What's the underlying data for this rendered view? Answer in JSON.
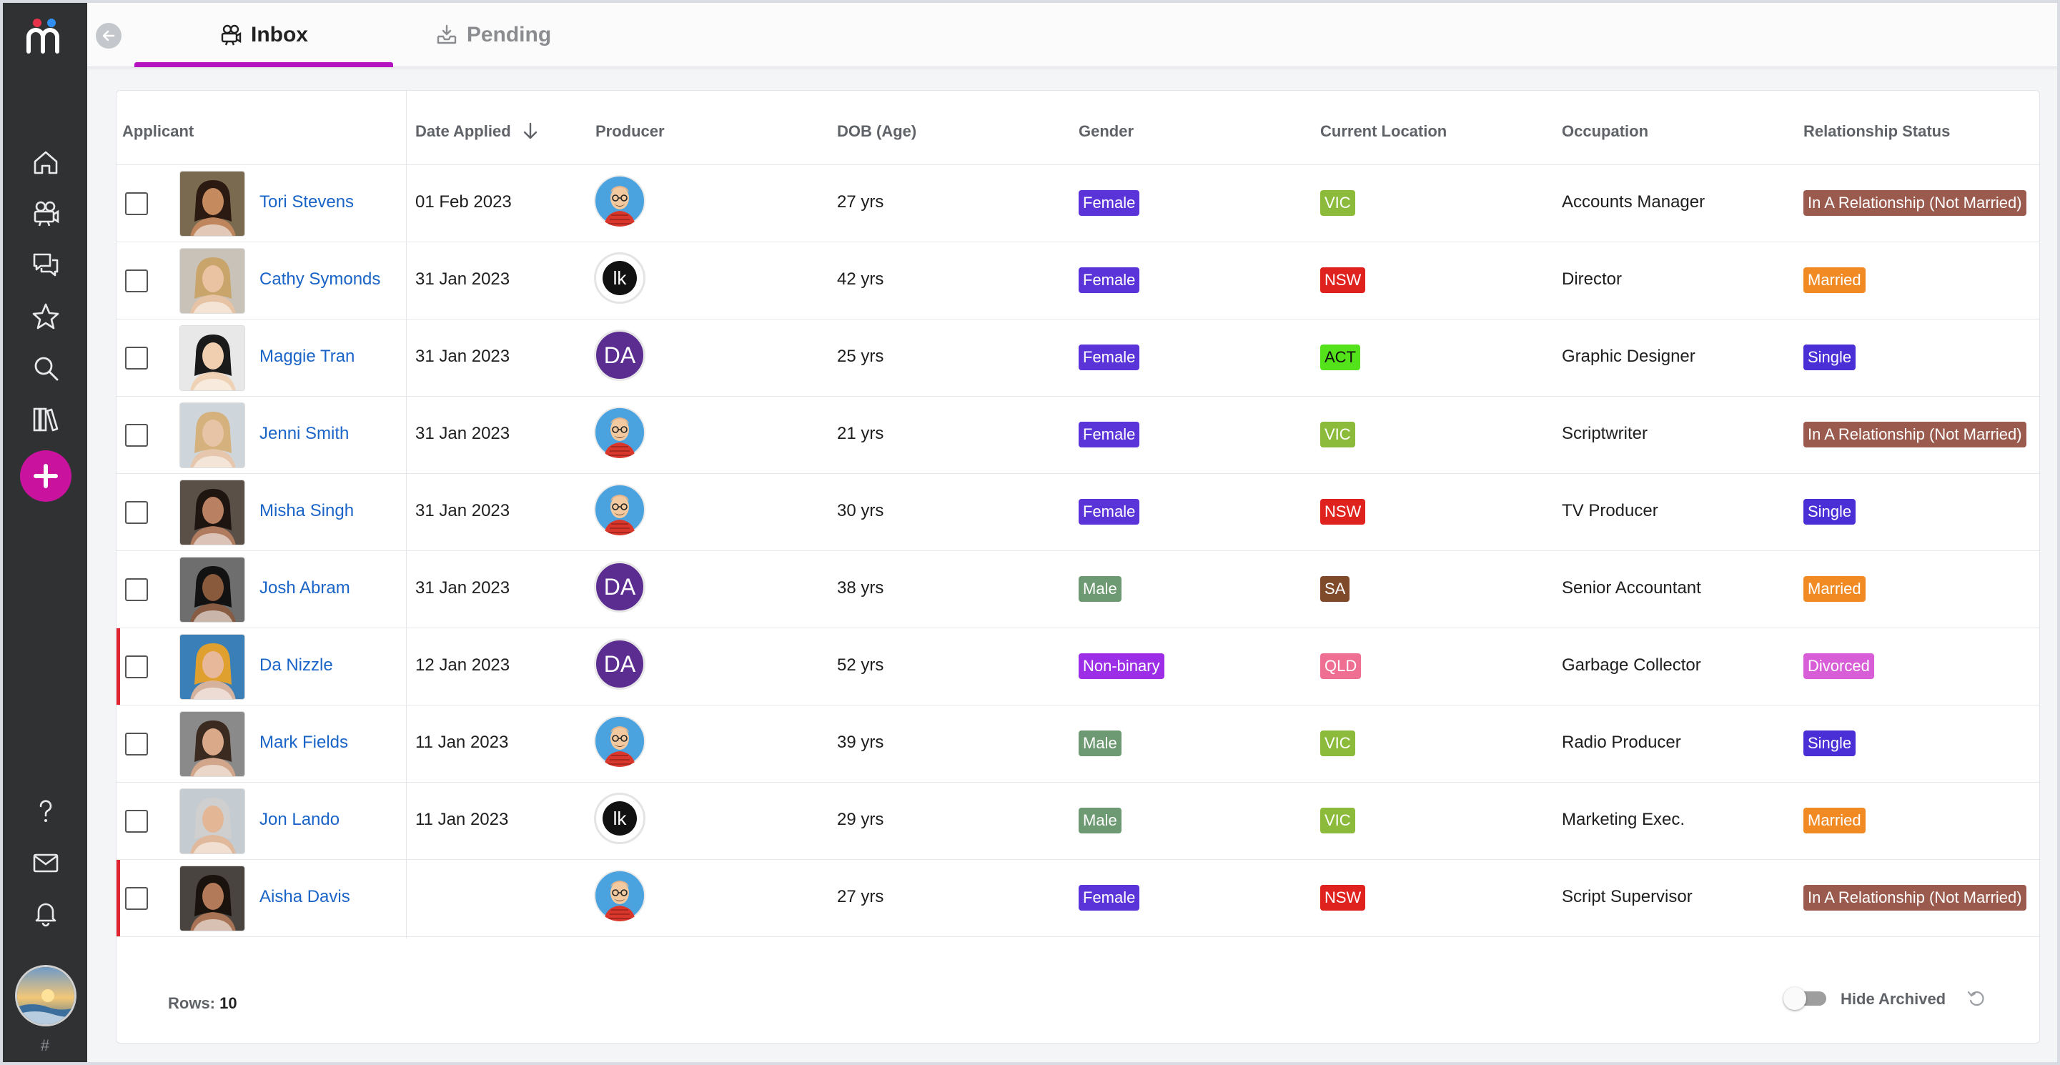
{
  "tabs": [
    {
      "label": "Inbox",
      "active": true,
      "icon": "camera-icon"
    },
    {
      "label": "Pending",
      "active": false,
      "icon": "tray-download-icon"
    }
  ],
  "columns": {
    "applicant": "Applicant",
    "date_applied": "Date Applied",
    "producer": "Producer",
    "dob": "DOB (Age)",
    "gender": "Gender",
    "location": "Current Location",
    "occupation": "Occupation",
    "relationship": "Relationship Status"
  },
  "sort": {
    "column": "Date Applied",
    "direction": "descending"
  },
  "colors": {
    "accent": "#b512c0",
    "add_button": "#c9139f",
    "link": "#1a64c8",
    "flag": "#e02434",
    "female": "#5a34d8",
    "male": "#6d9a72",
    "non_binary": "#9c2ee8",
    "VIC": "#8cbb3b",
    "NSW": "#e0221e",
    "ACT": "#54e21a",
    "SA": "#7f4a2a",
    "QLD": "#ef6f93",
    "in_relationship": "#9a5a4e",
    "married": "#f28a24",
    "single": "#4a2ed6",
    "divorced": "#d85ed8"
  },
  "rows": [
    {
      "name": "Tori Stevens",
      "date": "01 Feb 2023",
      "producer": "cartoon",
      "age": "27 yrs",
      "gender": "Female",
      "location": "VIC",
      "occupation": "Accounts Manager",
      "relationship": "In A Relationship (Not Married)",
      "flagged": false
    },
    {
      "name": "Cathy Symonds",
      "date": "31 Jan 2023",
      "producer": "lk",
      "age": "42 yrs",
      "gender": "Female",
      "location": "NSW",
      "occupation": "Director",
      "relationship": "Married",
      "flagged": false
    },
    {
      "name": "Maggie Tran",
      "date": "31 Jan 2023",
      "producer": "DA",
      "age": "25 yrs",
      "gender": "Female",
      "location": "ACT",
      "occupation": "Graphic Designer",
      "relationship": "Single",
      "flagged": false
    },
    {
      "name": "Jenni Smith",
      "date": "31 Jan 2023",
      "producer": "cartoon",
      "age": "21 yrs",
      "gender": "Female",
      "location": "VIC",
      "occupation": "Scriptwriter",
      "relationship": "In A Relationship (Not Married)",
      "flagged": false
    },
    {
      "name": "Misha Singh",
      "date": "31 Jan 2023",
      "producer": "cartoon",
      "age": "30 yrs",
      "gender": "Female",
      "location": "NSW",
      "occupation": "TV Producer",
      "relationship": "Single",
      "flagged": false
    },
    {
      "name": "Josh Abram",
      "date": "31 Jan 2023",
      "producer": "DA",
      "age": "38 yrs",
      "gender": "Male",
      "location": "SA",
      "occupation": "Senior Accountant",
      "relationship": "Married",
      "flagged": false
    },
    {
      "name": "Da Nizzle",
      "date": "12 Jan 2023",
      "producer": "DA",
      "age": "52 yrs",
      "gender": "Non-binary",
      "location": "QLD",
      "occupation": "Garbage Collector",
      "relationship": "Divorced",
      "flagged": true
    },
    {
      "name": "Mark Fields",
      "date": "11 Jan 2023",
      "producer": "cartoon",
      "age": "39 yrs",
      "gender": "Male",
      "location": "VIC",
      "occupation": "Radio Producer",
      "relationship": "Single",
      "flagged": false
    },
    {
      "name": "Jon Lando",
      "date": "11 Jan 2023",
      "producer": "lk",
      "age": "29 yrs",
      "gender": "Male",
      "location": "VIC",
      "occupation": "Marketing Exec.",
      "relationship": "Married",
      "flagged": false
    },
    {
      "name": "Aisha Davis",
      "date": "",
      "producer": "cartoon",
      "age": "27 yrs",
      "gender": "Female",
      "location": "NSW",
      "occupation": "Script Supervisor",
      "relationship": "In A Relationship (Not Married)",
      "flagged": true
    }
  ],
  "footer": {
    "rows_label": "Rows:",
    "rows_count": "10",
    "hide_archived_label": "Hide Archived",
    "hide_archived_on": false
  },
  "sidebar": {
    "items": [
      "home-icon",
      "camera-icon",
      "chat-icon",
      "star-icon",
      "search-icon",
      "library-icon"
    ],
    "bottom_items": [
      "help-icon",
      "mail-icon",
      "bell-icon"
    ],
    "hash": "#"
  }
}
